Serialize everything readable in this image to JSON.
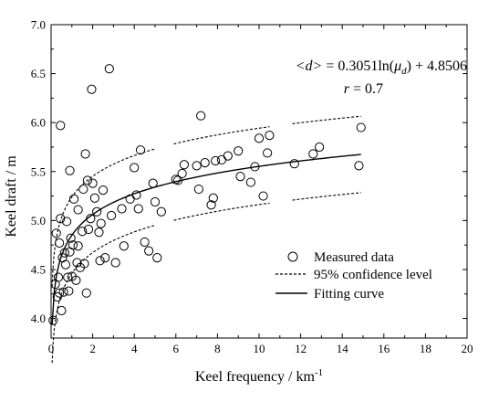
{
  "chart_data": {
    "type": "scatter",
    "title": "",
    "xlabel": "Keel frequency / km",
    "xlabel_superscript": "-1",
    "ylabel": "Keel draft / m",
    "xlim": [
      0,
      20
    ],
    "ylim": [
      3.8,
      7.0
    ],
    "xticks": [
      "0",
      "2",
      "4",
      "6",
      "8",
      "10",
      "12",
      "14",
      "16",
      "18",
      "20"
    ],
    "yticks": [
      "4.0",
      "4.5",
      "5.0",
      "5.5",
      "6.0",
      "6.5",
      "7.0"
    ],
    "grid": false,
    "legend_position": "bottom-right",
    "annotation": {
      "lhs": "<d>",
      "eq_prefix": " = 0.3051ln(",
      "mu": "μ",
      "mu_sub": "d",
      "eq_suffix": ") + 4.8506",
      "r_var": "r",
      "r_value": " = 0.7"
    },
    "series": [
      {
        "name": "Measured data",
        "kind": "scatter",
        "marker": "open-circle",
        "points": [
          [
            0.1,
            3.98
          ],
          [
            0.2,
            4.35
          ],
          [
            0.25,
            4.87
          ],
          [
            0.3,
            4.22
          ],
          [
            0.35,
            4.42
          ],
          [
            0.4,
            4.26
          ],
          [
            0.4,
            4.77
          ],
          [
            0.45,
            5.02
          ],
          [
            0.45,
            5.97
          ],
          [
            0.5,
            4.08
          ],
          [
            0.55,
            4.62
          ],
          [
            0.6,
            4.27
          ],
          [
            0.65,
            4.67
          ],
          [
            0.7,
            4.55
          ],
          [
            0.75,
            4.99
          ],
          [
            0.8,
            4.42
          ],
          [
            0.85,
            4.28
          ],
          [
            0.9,
            4.68
          ],
          [
            0.9,
            5.51
          ],
          [
            0.95,
            4.82
          ],
          [
            1.0,
            4.43
          ],
          [
            1.05,
            4.75
          ],
          [
            1.1,
            5.22
          ],
          [
            1.2,
            4.39
          ],
          [
            1.25,
            4.57
          ],
          [
            1.3,
            4.74
          ],
          [
            1.3,
            5.11
          ],
          [
            1.4,
            4.52
          ],
          [
            1.5,
            4.89
          ],
          [
            1.55,
            5.32
          ],
          [
            1.6,
            4.56
          ],
          [
            1.65,
            5.68
          ],
          [
            1.7,
            4.26
          ],
          [
            1.75,
            5.41
          ],
          [
            1.8,
            4.91
          ],
          [
            1.9,
            5.02
          ],
          [
            1.95,
            6.34
          ],
          [
            2.0,
            5.38
          ],
          [
            2.1,
            5.23
          ],
          [
            2.2,
            5.09
          ],
          [
            2.3,
            4.88
          ],
          [
            2.35,
            4.59
          ],
          [
            2.4,
            4.97
          ],
          [
            2.5,
            5.31
          ],
          [
            2.6,
            4.62
          ],
          [
            2.8,
            6.55
          ],
          [
            2.9,
            5.05
          ],
          [
            3.1,
            4.57
          ],
          [
            3.4,
            5.12
          ],
          [
            3.5,
            4.74
          ],
          [
            3.8,
            5.22
          ],
          [
            4.0,
            5.54
          ],
          [
            4.1,
            5.26
          ],
          [
            4.2,
            5.12
          ],
          [
            4.3,
            5.72
          ],
          [
            4.5,
            4.78
          ],
          [
            4.7,
            4.69
          ],
          [
            4.9,
            5.38
          ],
          [
            5.0,
            5.19
          ],
          [
            5.1,
            4.62
          ],
          [
            5.3,
            5.09
          ],
          [
            6.0,
            5.42
          ],
          [
            6.1,
            5.41
          ],
          [
            6.3,
            5.48
          ],
          [
            6.4,
            5.57
          ],
          [
            7.0,
            5.56
          ],
          [
            7.1,
            5.32
          ],
          [
            7.2,
            6.07
          ],
          [
            7.4,
            5.59
          ],
          [
            7.7,
            5.16
          ],
          [
            7.8,
            5.23
          ],
          [
            7.9,
            5.61
          ],
          [
            8.2,
            5.62
          ],
          [
            8.5,
            5.66
          ],
          [
            9.0,
            5.71
          ],
          [
            9.1,
            5.45
          ],
          [
            9.6,
            5.39
          ],
          [
            9.8,
            5.55
          ],
          [
            10.0,
            5.84
          ],
          [
            10.2,
            5.25
          ],
          [
            10.4,
            5.69
          ],
          [
            10.5,
            5.87
          ],
          [
            11.7,
            5.58
          ],
          [
            12.6,
            5.68
          ],
          [
            12.9,
            5.75
          ],
          [
            14.8,
            5.56
          ],
          [
            14.9,
            5.95
          ]
        ]
      },
      {
        "name": "95% confidence level",
        "kind": "dashed-line"
      },
      {
        "name": "Fitting curve",
        "kind": "line"
      }
    ],
    "fit": {
      "a": 0.3051,
      "b": 4.8506,
      "x_range": [
        0.05,
        14.9
      ]
    },
    "confidence": {
      "offset": 0.39,
      "segments": [
        [
          0.05,
          5.0
        ],
        [
          5.9,
          10.5
        ],
        [
          11.6,
          14.9
        ]
      ]
    }
  }
}
